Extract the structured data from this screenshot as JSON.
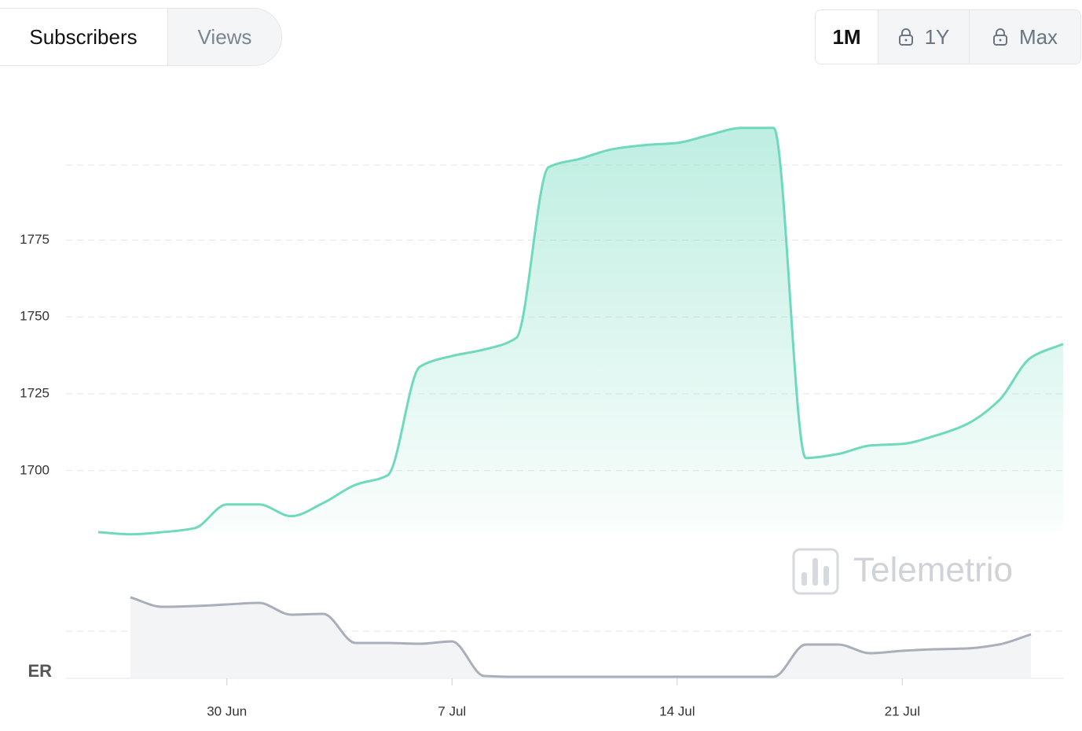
{
  "tabs": [
    "Subscribers",
    "Views"
  ],
  "ranges": [
    "1M",
    "1Y",
    "Max"
  ],
  "watermark": "Telemetrio",
  "chart_data": [
    {
      "type": "area",
      "color": "#6fd9bd",
      "values": [
        1680.0,
        1679.3,
        1680.0,
        1681.3,
        1689.0,
        1689.0,
        1685.2,
        1689.5,
        1695.4,
        1698.5,
        1733.8,
        1737.3,
        1739.4,
        1743.2,
        1798.7,
        1801.5,
        1804.6,
        1805.9,
        1806.6,
        1809.2,
        1811.5,
        1811.5,
        1704.1,
        1705.4,
        1708.2,
        1708.7,
        1711.3,
        1715.1,
        1722.8,
        1736.8,
        1741.2
      ],
      "ylim": [
        1680,
        1815
      ],
      "yticks": [
        1700,
        1725,
        1750,
        1775
      ],
      "grid": true
    },
    {
      "type": "area",
      "color": "#a9afba",
      "ylabel": "ER",
      "categories": [
        null,
        null,
        null,
        null,
        "30 Jun",
        null,
        null,
        null,
        null,
        null,
        null,
        "7 Jul",
        null,
        null,
        null,
        null,
        null,
        null,
        "14 Jul",
        null,
        null,
        null,
        null,
        null,
        null,
        "21 Jul",
        null,
        null,
        null,
        null,
        null
      ],
      "values": [
        null,
        102,
        90,
        91,
        93,
        95,
        80,
        81,
        44,
        44,
        43,
        46,
        2,
        1,
        1,
        1,
        1,
        1,
        1,
        1,
        1,
        1,
        42,
        42,
        31,
        34,
        36,
        37,
        42,
        55,
        null
      ],
      "ylim": [
        0,
        110
      ]
    }
  ]
}
